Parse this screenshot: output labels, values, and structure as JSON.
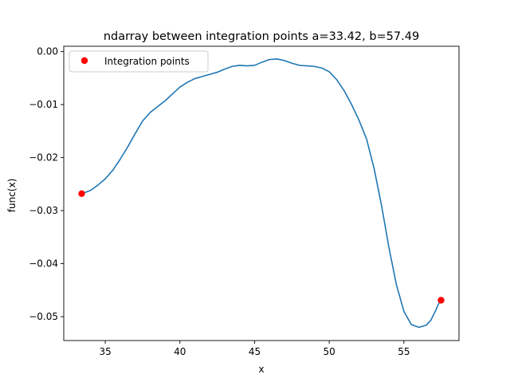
{
  "chart_data": {
    "type": "line",
    "title": "ndarray between integration points a=33.42, b=57.49",
    "xlabel": "x",
    "ylabel": "func(x)",
    "xlim": [
      32.22,
      58.69
    ],
    "ylim": [
      -0.0545,
      0.001
    ],
    "xticks": [
      35,
      40,
      45,
      50,
      55
    ],
    "xtick_labels": [
      "35",
      "40",
      "45",
      "50",
      "55"
    ],
    "yticks": [
      0.0,
      -0.01,
      -0.02,
      -0.03,
      -0.04,
      -0.05
    ],
    "ytick_labels": [
      "0.00",
      "−0.01",
      "−0.02",
      "−0.03",
      "−0.04",
      "−0.05"
    ],
    "grid": false,
    "legend": {
      "position": "top-left",
      "entries": [
        "Integration points"
      ]
    },
    "series": [
      {
        "kind": "line",
        "color": "#1f77b4",
        "x": [
          33.42,
          34.0,
          34.5,
          35.0,
          35.5,
          36.0,
          36.5,
          37.0,
          37.5,
          38.0,
          38.5,
          39.0,
          39.5,
          40.0,
          40.5,
          41.0,
          41.5,
          42.0,
          42.5,
          43.0,
          43.5,
          44.0,
          44.5,
          45.0,
          45.5,
          46.0,
          46.5,
          47.0,
          47.5,
          48.0,
          48.5,
          49.0,
          49.5,
          50.0,
          50.5,
          51.0,
          51.5,
          52.0,
          52.5,
          53.0,
          53.5,
          54.0,
          54.5,
          55.0,
          55.5,
          56.0,
          56.5,
          56.8,
          57.1,
          57.3,
          57.49
        ],
        "y": [
          -0.0268,
          -0.0262,
          -0.0252,
          -0.024,
          -0.0224,
          -0.0203,
          -0.018,
          -0.0155,
          -0.0131,
          -0.0115,
          -0.0104,
          -0.0093,
          -0.008,
          -0.0067,
          -0.0058,
          -0.0051,
          -0.0047,
          -0.0043,
          -0.0039,
          -0.0033,
          -0.0028,
          -0.0026,
          -0.0027,
          -0.0026,
          -0.002,
          -0.0015,
          -0.0014,
          -0.0017,
          -0.0022,
          -0.0026,
          -0.0027,
          -0.0028,
          -0.0031,
          -0.0038,
          -0.0053,
          -0.0074,
          -0.01,
          -0.013,
          -0.0165,
          -0.022,
          -0.029,
          -0.037,
          -0.044,
          -0.049,
          -0.0515,
          -0.052,
          -0.0516,
          -0.0507,
          -0.049,
          -0.0477,
          -0.0468
        ]
      },
      {
        "kind": "scatter",
        "name": "Integration points",
        "color": "#ff0000",
        "x": [
          33.42,
          57.49
        ],
        "y": [
          -0.0268,
          -0.0469
        ]
      }
    ]
  }
}
